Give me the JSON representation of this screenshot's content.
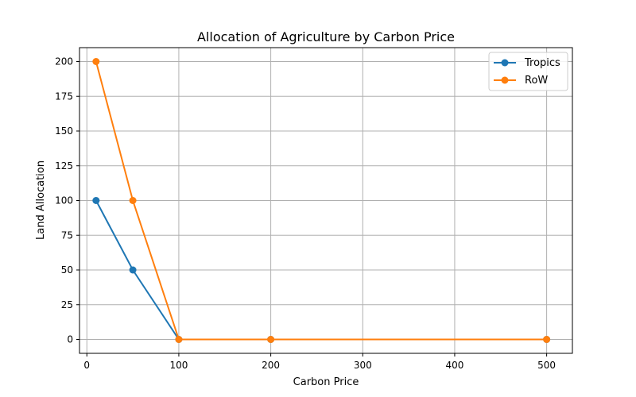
{
  "chart_data": {
    "type": "line",
    "title": "Allocation of Agriculture by Carbon Price",
    "xlabel": "Carbon Price",
    "ylabel": "Land Allocation",
    "xlim": [
      -8,
      528
    ],
    "ylim": [
      -10,
      210
    ],
    "xticks": [
      0,
      100,
      200,
      300,
      400,
      500
    ],
    "yticks": [
      0,
      25,
      50,
      75,
      100,
      125,
      150,
      175,
      200
    ],
    "grid": true,
    "legend_position": "top-right",
    "series": [
      {
        "name": "Tropics",
        "color": "#1f77b4",
        "x": [
          10,
          50,
          100,
          200,
          500
        ],
        "y": [
          100,
          50,
          0,
          0,
          0
        ]
      },
      {
        "name": "RoW",
        "color": "#ff7f0e",
        "x": [
          10,
          50,
          100,
          200,
          500
        ],
        "y": [
          200,
          100,
          0,
          0,
          0
        ]
      }
    ]
  }
}
